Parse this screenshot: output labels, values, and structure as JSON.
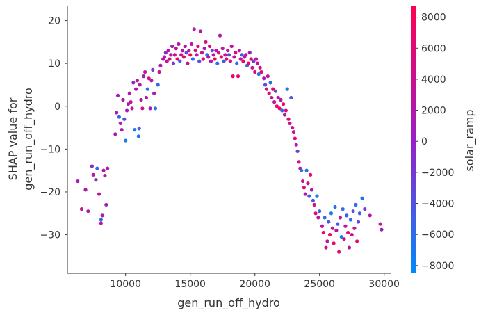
{
  "chart_data": {
    "type": "scatter",
    "title": "",
    "xlabel": "gen_run_off_hydro",
    "ylabel_lines": [
      "SHAP value for",
      "gen_run_off_hydro"
    ],
    "xlim": [
      5500,
      30500
    ],
    "ylim": [
      -39,
      23.5
    ],
    "xticks": [
      10000,
      15000,
      20000,
      25000,
      30000
    ],
    "yticks": [
      20,
      10,
      0,
      -10,
      -20,
      -30
    ],
    "colorbar": {
      "label": "solar_ramp",
      "range": [
        -8500,
        8700
      ],
      "ticks": [
        8000,
        6000,
        4000,
        2000,
        0,
        -2000,
        -4000,
        -6000,
        -8000
      ],
      "low_color": "#008bfb",
      "mid_color": "#9a1fc4",
      "high_color": "#ff0052"
    },
    "points": [
      [
        6300,
        -17.5,
        1000
      ],
      [
        6600,
        -24,
        3000
      ],
      [
        6900,
        -19.5,
        2000
      ],
      [
        7100,
        -24.5,
        1500
      ],
      [
        7400,
        -14,
        -1000
      ],
      [
        7500,
        -16,
        2500
      ],
      [
        7700,
        -17.2,
        -500
      ],
      [
        7800,
        -14.5,
        -6000
      ],
      [
        7950,
        -20.5,
        3500
      ],
      [
        8100,
        -26.5,
        -5500
      ],
      [
        8100,
        -27.3,
        3000
      ],
      [
        8200,
        -25.5,
        1000
      ],
      [
        8300,
        -15,
        2000
      ],
      [
        8400,
        -16.2,
        2500
      ],
      [
        8500,
        -23,
        500
      ],
      [
        8600,
        -14.5,
        1500
      ],
      [
        9200,
        -6.5,
        1200
      ],
      [
        9300,
        -1.5,
        2000
      ],
      [
        9400,
        2.5,
        800
      ],
      [
        9500,
        -2.5,
        -6000
      ],
      [
        9600,
        -4,
        3000
      ],
      [
        9700,
        -5.5,
        1500
      ],
      [
        9800,
        1.5,
        2500
      ],
      [
        9900,
        -3,
        -4000
      ],
      [
        10000,
        -8,
        -7000
      ],
      [
        10100,
        -1,
        1000
      ],
      [
        10200,
        0.5,
        3500
      ],
      [
        10300,
        3,
        2200
      ],
      [
        10400,
        1,
        1800
      ],
      [
        10500,
        -0.5,
        2600
      ],
      [
        10600,
        5.5,
        -800
      ],
      [
        10700,
        -5.5,
        -7000
      ],
      [
        10800,
        4,
        2000
      ],
      [
        10900,
        6,
        3500
      ],
      [
        11000,
        -7,
        -6500
      ],
      [
        11050,
        -5.2,
        -5500
      ],
      [
        11100,
        5,
        2200
      ],
      [
        11200,
        1.5,
        3000
      ],
      [
        11300,
        -0.5,
        4000
      ],
      [
        11400,
        7,
        1500
      ],
      [
        11500,
        8,
        3000
      ],
      [
        11600,
        2,
        2500
      ],
      [
        11700,
        4,
        -6000
      ],
      [
        11800,
        6.5,
        5500
      ],
      [
        11900,
        -0.5,
        1000
      ],
      [
        12000,
        6,
        2700
      ],
      [
        12100,
        8.5,
        -3000
      ],
      [
        12200,
        3,
        1600
      ],
      [
        12300,
        -0.5,
        -7000
      ],
      [
        12500,
        5,
        -5500
      ],
      [
        12600,
        8,
        3000
      ],
      [
        12700,
        9.5,
        2000
      ],
      [
        12900,
        11,
        1500
      ],
      [
        13000,
        11.5,
        2000
      ],
      [
        13100,
        12.5,
        -500
      ],
      [
        13200,
        10.5,
        4500
      ],
      [
        13300,
        13,
        3000
      ],
      [
        13400,
        11,
        6000
      ],
      [
        13500,
        12,
        2500
      ],
      [
        13600,
        14,
        1000
      ],
      [
        13700,
        10,
        -2000
      ],
      [
        13800,
        12,
        5500
      ],
      [
        13900,
        13.5,
        3500
      ],
      [
        14000,
        11,
        7000
      ],
      [
        14100,
        14.5,
        2000
      ],
      [
        14200,
        10.5,
        -5500
      ],
      [
        14300,
        12,
        4000
      ],
      [
        14400,
        13,
        1500
      ],
      [
        14500,
        11.5,
        6500
      ],
      [
        14600,
        14,
        2500
      ],
      [
        14700,
        12.5,
        -3000
      ],
      [
        14800,
        10,
        5000
      ],
      [
        14900,
        13,
        3000
      ],
      [
        15000,
        12,
        7500
      ],
      [
        15100,
        14.5,
        2200
      ],
      [
        15200,
        11,
        -6000
      ],
      [
        15300,
        18,
        3000
      ],
      [
        15400,
        13,
        5500
      ],
      [
        15500,
        12,
        1800
      ],
      [
        15600,
        14,
        6500
      ],
      [
        15700,
        10.5,
        -4000
      ],
      [
        15800,
        17.5,
        2600
      ],
      [
        15900,
        12.5,
        4200
      ],
      [
        16000,
        11,
        7000
      ],
      [
        16100,
        13.5,
        1400
      ],
      [
        16200,
        15,
        5200
      ],
      [
        16300,
        12,
        -7000
      ],
      [
        16400,
        11.5,
        3300
      ],
      [
        16500,
        14,
        6000
      ],
      [
        16600,
        10.5,
        2200
      ],
      [
        16700,
        13,
        -2500
      ],
      [
        16800,
        12,
        4700
      ],
      [
        16900,
        11,
        7600
      ],
      [
        17000,
        13,
        3000
      ],
      [
        17100,
        10,
        -6500
      ],
      [
        17200,
        12.5,
        5300
      ],
      [
        17300,
        16.5,
        2300
      ],
      [
        17400,
        11.5,
        6800
      ],
      [
        17500,
        13.5,
        1600
      ],
      [
        17600,
        10.5,
        -5000
      ],
      [
        17700,
        12,
        3900
      ],
      [
        17800,
        11,
        7200
      ],
      [
        17900,
        13,
        2800
      ],
      [
        18000,
        12,
        -3500
      ],
      [
        18100,
        10.5,
        5700
      ],
      [
        18200,
        14,
        3100
      ],
      [
        18300,
        7,
        7500
      ],
      [
        18400,
        11.5,
        1700
      ],
      [
        18500,
        12.5,
        6200
      ],
      [
        18600,
        10,
        -6000
      ],
      [
        18700,
        7,
        7000
      ],
      [
        18800,
        13,
        2500
      ],
      [
        18900,
        11,
        4600
      ],
      [
        19000,
        12,
        -4500
      ],
      [
        19100,
        10.5,
        6000
      ],
      [
        19200,
        11.5,
        2200
      ],
      [
        19300,
        12,
        3600
      ],
      [
        19400,
        9.5,
        -5500
      ],
      [
        19500,
        10,
        7400
      ],
      [
        19600,
        12.5,
        1500
      ],
      [
        19700,
        11,
        5300
      ],
      [
        19800,
        9,
        2800
      ],
      [
        19900,
        10.5,
        -2000
      ],
      [
        20000,
        8,
        6600
      ],
      [
        20100,
        11,
        2400
      ],
      [
        20200,
        10,
        4800
      ],
      [
        20300,
        7.5,
        -6500
      ],
      [
        20400,
        9,
        3500
      ],
      [
        20500,
        8,
        7000
      ],
      [
        20700,
        6.5,
        2000
      ],
      [
        20800,
        5,
        -4000
      ],
      [
        20900,
        4,
        5500
      ],
      [
        21000,
        7,
        3000
      ],
      [
        21100,
        3,
        6800
      ],
      [
        21200,
        5.5,
        -6000
      ],
      [
        21300,
        2,
        2500
      ],
      [
        21400,
        4,
        7200
      ],
      [
        21500,
        1,
        4000
      ],
      [
        21600,
        3.5,
        -3500
      ],
      [
        21700,
        0,
        6000
      ],
      [
        21800,
        2,
        2000
      ],
      [
        21900,
        -0.5,
        7600
      ],
      [
        22000,
        1.5,
        3300
      ],
      [
        22100,
        -1,
        -5500
      ],
      [
        22200,
        0.5,
        6400
      ],
      [
        22300,
        -2,
        1800
      ],
      [
        22400,
        -1,
        4900
      ],
      [
        22500,
        4,
        -6500
      ],
      [
        22600,
        -3,
        7000
      ],
      [
        22700,
        -4,
        2600
      ],
      [
        22800,
        2,
        -4000
      ],
      [
        22900,
        -5,
        5700
      ],
      [
        23000,
        -6,
        3000
      ],
      [
        23100,
        -7.5,
        7300
      ],
      [
        23200,
        -9,
        2200
      ],
      [
        23300,
        -10.5,
        -3000
      ],
      [
        23400,
        -13,
        5000
      ],
      [
        23500,
        -14.5,
        2800
      ],
      [
        23600,
        -15,
        -6500
      ],
      [
        23700,
        -17.5,
        4000
      ],
      [
        23800,
        -19,
        7000
      ],
      [
        23900,
        -20.5,
        2500
      ],
      [
        24000,
        -15,
        -6000
      ],
      [
        24100,
        -18,
        3600
      ],
      [
        24200,
        -21,
        -5000
      ],
      [
        24300,
        -16,
        6300
      ],
      [
        24400,
        -19.5,
        2000
      ],
      [
        24500,
        -22,
        -4000
      ],
      [
        24600,
        -23,
        5000
      ],
      [
        24700,
        -25,
        7300
      ],
      [
        24800,
        -21,
        -6500
      ],
      [
        24900,
        -26,
        2900
      ],
      [
        25000,
        -24.5,
        -5500
      ],
      [
        25200,
        -28,
        3000
      ],
      [
        25300,
        -29.5,
        7000
      ],
      [
        25400,
        -26,
        -6000
      ],
      [
        25500,
        -33,
        5000
      ],
      [
        25600,
        -31.5,
        2000
      ],
      [
        25700,
        -27,
        -4500
      ],
      [
        25800,
        -30,
        7400
      ],
      [
        25900,
        -25,
        -7000
      ],
      [
        26000,
        -28.5,
        3500
      ],
      [
        26100,
        -32,
        6000
      ],
      [
        26200,
        -23.5,
        -6500
      ],
      [
        26300,
        -29,
        2300
      ],
      [
        26400,
        -27.5,
        -5000
      ],
      [
        26500,
        -34,
        7000
      ],
      [
        26600,
        -26,
        4000
      ],
      [
        26700,
        -30.5,
        -7500
      ],
      [
        26800,
        -24,
        -6000
      ],
      [
        26900,
        -31,
        6500
      ],
      [
        27000,
        -28,
        3000
      ],
      [
        27100,
        -25.5,
        -5000
      ],
      [
        27200,
        -29.5,
        7600
      ],
      [
        27300,
        -33,
        2000
      ],
      [
        27400,
        -26.5,
        -6500
      ],
      [
        27500,
        -30,
        5000
      ],
      [
        27600,
        -24.5,
        -4000
      ],
      [
        27700,
        -28.5,
        3600
      ],
      [
        27800,
        -23,
        -6000
      ],
      [
        27900,
        -31.5,
        7000
      ],
      [
        28000,
        -27,
        -3500
      ],
      [
        28100,
        -25,
        -5500
      ],
      [
        28300,
        -21.5,
        -6500
      ],
      [
        28500,
        -24,
        -2000
      ],
      [
        28900,
        -25.5,
        2500
      ],
      [
        29700,
        -27.5,
        3000
      ],
      [
        29800,
        -28.8,
        1000
      ]
    ]
  }
}
